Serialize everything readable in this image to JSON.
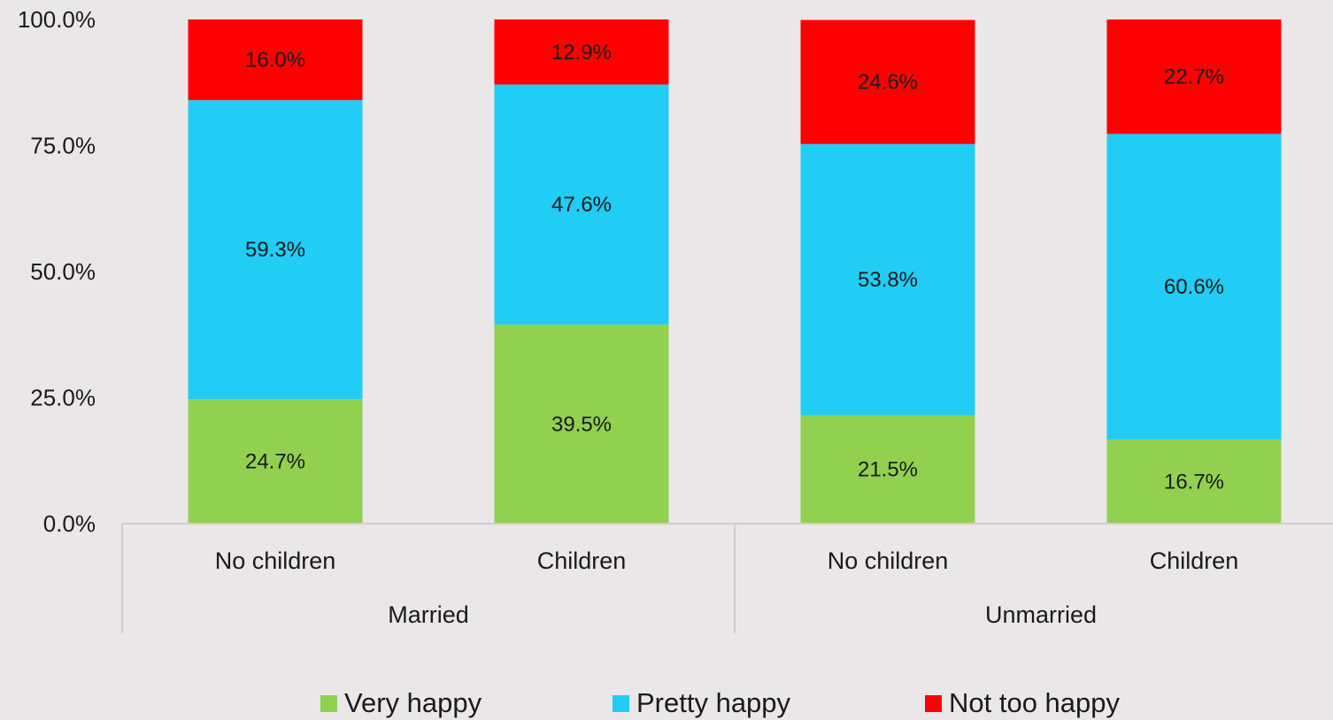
{
  "chart_data": {
    "type": "bar",
    "stacked": true,
    "percent_stacked": true,
    "groups": [
      {
        "label": "Married",
        "categories": [
          "No children",
          "Children"
        ]
      },
      {
        "label": "Unmarried",
        "categories": [
          "No children",
          "Children"
        ]
      }
    ],
    "categories": [
      "No children",
      "Children",
      "No children",
      "Children"
    ],
    "series": [
      {
        "name": "Very happy",
        "color": "#92d050",
        "values": [
          24.7,
          39.5,
          21.5,
          16.7
        ],
        "labels": [
          "24.7%",
          "39.5%",
          "21.5%",
          "16.7%"
        ]
      },
      {
        "name": "Pretty happy",
        "color": "#21ccf5",
        "values": [
          59.3,
          47.6,
          53.8,
          60.6
        ],
        "labels": [
          "59.3%",
          "47.6%",
          "53.8%",
          "60.6%"
        ]
      },
      {
        "name": "Not too happy",
        "color": "#ff0000",
        "values": [
          16.0,
          12.9,
          24.6,
          22.7
        ],
        "labels": [
          "16.0%",
          "12.9%",
          "24.6%",
          "22.7%"
        ]
      }
    ],
    "ylim": [
      0,
      100
    ],
    "y_ticks": [
      {
        "value": 0,
        "label": "0.0%"
      },
      {
        "value": 25,
        "label": "25.0%"
      },
      {
        "value": 50,
        "label": "50.0%"
      },
      {
        "value": 75,
        "label": "75.0%"
      },
      {
        "value": 100,
        "label": "100.0%"
      }
    ],
    "title": "",
    "xlabel": "",
    "ylabel": "",
    "grid": false,
    "legend_position": "bottom"
  }
}
